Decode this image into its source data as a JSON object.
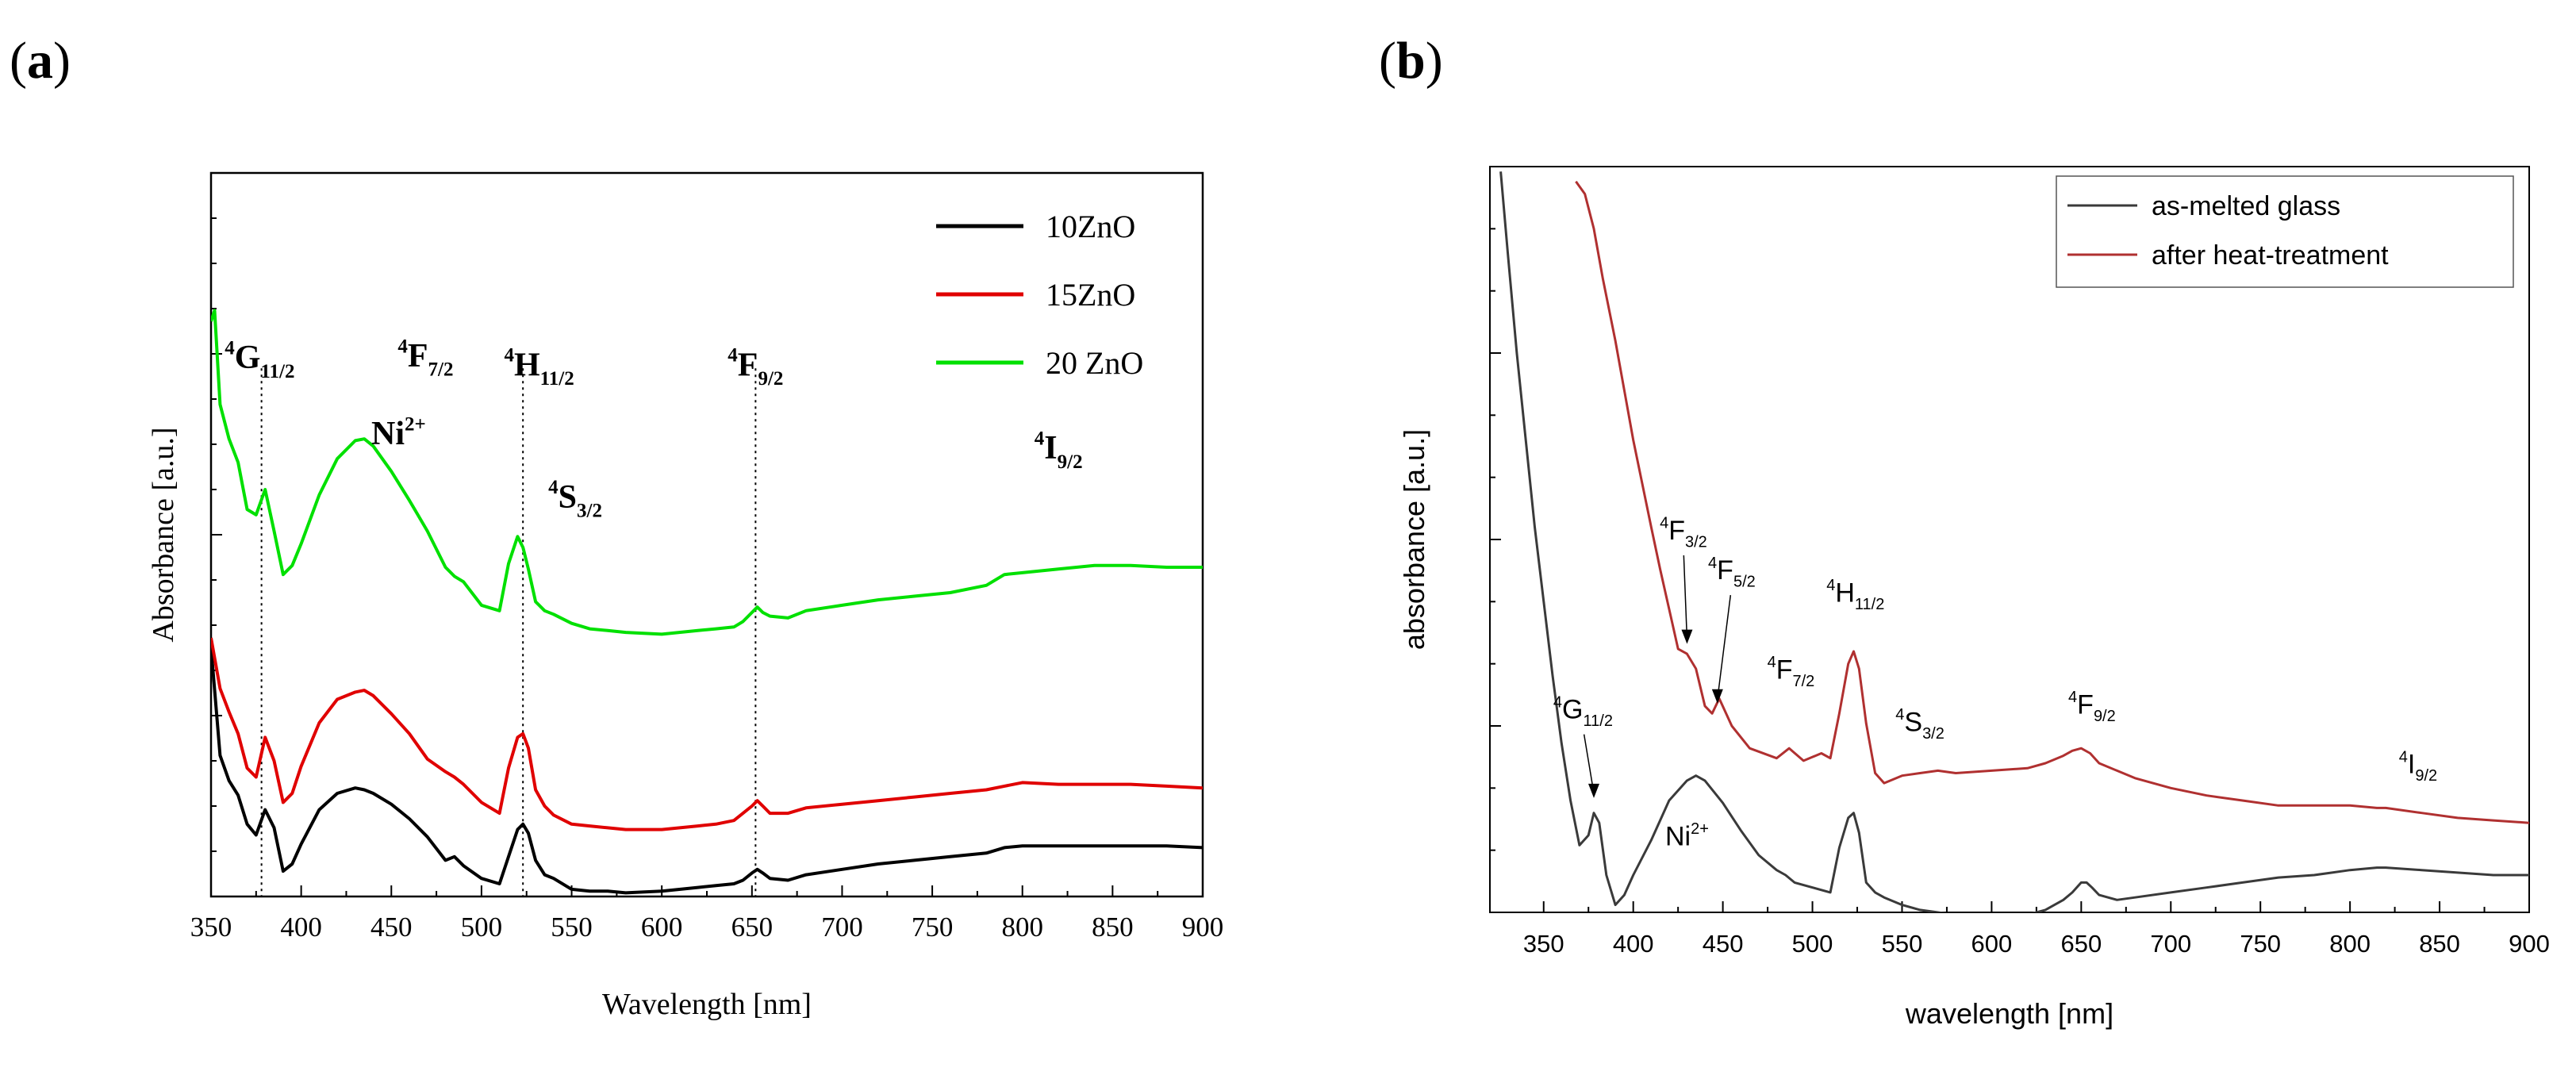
{
  "panels": {
    "a_label_open": "(",
    "a_label_letter": "a",
    "a_label_close": ")",
    "b_label_open": "(",
    "b_label_letter": "b",
    "b_label_close": ")"
  },
  "chart_data": [
    {
      "id": "a",
      "type": "line",
      "title": "",
      "xlabel": "Wavelength [nm]",
      "ylabel": "Absorbance [a.u.]",
      "xlim": [
        350,
        900
      ],
      "ylim": [
        0,
        4.0
      ],
      "xticks": [
        350,
        400,
        450,
        500,
        550,
        600,
        650,
        700,
        750,
        800,
        850,
        900
      ],
      "yticks_shown": false,
      "grid": false,
      "legend_position": "top-right",
      "series": [
        {
          "name": "10ZnO",
          "color": "#000000",
          "x": [
            350,
            355,
            360,
            365,
            370,
            375,
            380,
            385,
            390,
            395,
            400,
            410,
            420,
            430,
            435,
            440,
            450,
            460,
            470,
            480,
            485,
            490,
            500,
            510,
            515,
            520,
            523,
            526,
            530,
            535,
            540,
            550,
            560,
            570,
            580,
            600,
            620,
            630,
            640,
            645,
            650,
            653,
            656,
            660,
            670,
            680,
            700,
            720,
            740,
            760,
            780,
            790,
            800,
            820,
            840,
            860,
            880,
            900
          ],
          "y": [
            1.38,
            0.78,
            0.64,
            0.56,
            0.4,
            0.34,
            0.48,
            0.38,
            0.14,
            0.18,
            0.29,
            0.48,
            0.57,
            0.6,
            0.59,
            0.57,
            0.51,
            0.43,
            0.33,
            0.2,
            0.22,
            0.17,
            0.1,
            0.07,
            0.22,
            0.37,
            0.4,
            0.35,
            0.2,
            0.12,
            0.1,
            0.04,
            0.03,
            0.03,
            0.02,
            0.03,
            0.05,
            0.06,
            0.07,
            0.09,
            0.13,
            0.15,
            0.13,
            0.1,
            0.09,
            0.12,
            0.15,
            0.18,
            0.2,
            0.22,
            0.24,
            0.27,
            0.28,
            0.28,
            0.28,
            0.28,
            0.28,
            0.27
          ]
        },
        {
          "name": "15ZnO",
          "color": "#e00000",
          "x": [
            350,
            355,
            360,
            365,
            370,
            375,
            380,
            385,
            390,
            395,
            400,
            410,
            420,
            430,
            435,
            440,
            450,
            460,
            470,
            480,
            485,
            490,
            500,
            510,
            515,
            520,
            523,
            526,
            530,
            535,
            540,
            550,
            560,
            570,
            580,
            600,
            620,
            630,
            640,
            645,
            650,
            653,
            656,
            660,
            670,
            680,
            700,
            720,
            740,
            760,
            780,
            790,
            800,
            820,
            840,
            860,
            880,
            900
          ],
          "y": [
            1.43,
            1.15,
            1.02,
            0.9,
            0.71,
            0.66,
            0.88,
            0.75,
            0.52,
            0.57,
            0.72,
            0.96,
            1.09,
            1.13,
            1.14,
            1.11,
            1.01,
            0.9,
            0.76,
            0.69,
            0.66,
            0.62,
            0.52,
            0.46,
            0.71,
            0.88,
            0.9,
            0.82,
            0.59,
            0.5,
            0.45,
            0.4,
            0.39,
            0.38,
            0.37,
            0.37,
            0.39,
            0.4,
            0.42,
            0.46,
            0.5,
            0.53,
            0.5,
            0.46,
            0.46,
            0.49,
            0.51,
            0.53,
            0.55,
            0.57,
            0.59,
            0.61,
            0.63,
            0.62,
            0.62,
            0.62,
            0.61,
            0.6
          ]
        },
        {
          "name": "20 ZnO",
          "color": "#00e000",
          "x": [
            350,
            352,
            355,
            360,
            365,
            370,
            375,
            380,
            385,
            390,
            395,
            400,
            410,
            420,
            430,
            435,
            440,
            450,
            460,
            470,
            480,
            485,
            490,
            500,
            510,
            515,
            520,
            523,
            526,
            530,
            535,
            540,
            550,
            560,
            570,
            580,
            600,
            620,
            630,
            640,
            645,
            650,
            653,
            656,
            660,
            670,
            680,
            700,
            720,
            740,
            760,
            780,
            790,
            800,
            820,
            840,
            860,
            880,
            900
          ],
          "y": [
            3.18,
            3.24,
            2.72,
            2.53,
            2.4,
            2.14,
            2.11,
            2.25,
            2.02,
            1.78,
            1.83,
            1.95,
            2.22,
            2.42,
            2.52,
            2.53,
            2.49,
            2.35,
            2.19,
            2.02,
            1.82,
            1.77,
            1.74,
            1.61,
            1.58,
            1.84,
            1.99,
            1.93,
            1.81,
            1.63,
            1.58,
            1.56,
            1.51,
            1.48,
            1.47,
            1.46,
            1.45,
            1.47,
            1.48,
            1.49,
            1.52,
            1.57,
            1.6,
            1.57,
            1.55,
            1.54,
            1.58,
            1.61,
            1.64,
            1.66,
            1.68,
            1.72,
            1.78,
            1.79,
            1.81,
            1.83,
            1.83,
            1.82,
            1.82
          ]
        }
      ],
      "vlines": [
        378,
        523,
        652
      ],
      "annotations": [
        {
          "sup": "4",
          "main": "G",
          "sub": "11/2",
          "x": 377,
          "y": 2.92
        },
        {
          "sup": "4",
          "main": "F",
          "sub": "7/2",
          "x": 469,
          "y": 2.93
        },
        {
          "sup": "4",
          "main": "H",
          "sub": "11/2",
          "x": 532,
          "y": 2.88
        },
        {
          "sup": "4",
          "main": "F",
          "sub": "9/2",
          "x": 652,
          "y": 2.88
        },
        {
          "sup": "4",
          "main": "I",
          "sub": "9/2",
          "x": 820,
          "y": 2.42
        },
        {
          "sup": "4",
          "main": "S",
          "sub": "3/2",
          "x": 552,
          "y": 2.15
        },
        {
          "sup": "",
          "main": "Ni",
          "sup_after": "2+",
          "sub": "",
          "x": 454,
          "y": 2.5
        }
      ]
    },
    {
      "id": "b",
      "type": "line",
      "title": "",
      "xlabel": "wavelength [nm]",
      "ylabel": "absorbance [a.u.]",
      "xlim": [
        320,
        900
      ],
      "ylim": [
        0,
        3.0
      ],
      "xticks": [
        350,
        400,
        450,
        500,
        550,
        600,
        650,
        700,
        750,
        800,
        850,
        900
      ],
      "yticks_shown": false,
      "grid": false,
      "legend_position": "top-right",
      "series": [
        {
          "name": "as-melted glass",
          "color": "#3a3a3a",
          "x": [
            326,
            330,
            335,
            340,
            345,
            350,
            355,
            360,
            365,
            370,
            375,
            378,
            381,
            385,
            390,
            395,
            400,
            410,
            420,
            430,
            435,
            440,
            450,
            460,
            470,
            480,
            485,
            490,
            500,
            510,
            515,
            520,
            523,
            526,
            530,
            535,
            540,
            550,
            560,
            570,
            580,
            600,
            620,
            630,
            640,
            645,
            650,
            653,
            656,
            660,
            670,
            680,
            700,
            720,
            740,
            760,
            780,
            790,
            800,
            815,
            820,
            840,
            860,
            880,
            900
          ],
          "y": [
            2.98,
            2.65,
            2.25,
            1.9,
            1.55,
            1.25,
            0.95,
            0.68,
            0.45,
            0.27,
            0.31,
            0.4,
            0.36,
            0.15,
            0.03,
            0.07,
            0.15,
            0.29,
            0.45,
            0.53,
            0.55,
            0.53,
            0.44,
            0.33,
            0.23,
            0.17,
            0.15,
            0.12,
            0.1,
            0.08,
            0.26,
            0.38,
            0.4,
            0.32,
            0.12,
            0.08,
            0.06,
            0.03,
            0.01,
            0.0,
            -0.01,
            -0.02,
            -0.01,
            0.01,
            0.05,
            0.08,
            0.12,
            0.12,
            0.1,
            0.07,
            0.05,
            0.06,
            0.08,
            0.1,
            0.12,
            0.14,
            0.15,
            0.16,
            0.17,
            0.18,
            0.18,
            0.17,
            0.16,
            0.15,
            0.15
          ]
        },
        {
          "name": "after heat-treatment",
          "color": "#b03030",
          "x": [
            368,
            373,
            378,
            383,
            390,
            395,
            400,
            410,
            415,
            420,
            425,
            430,
            435,
            440,
            444,
            448,
            455,
            465,
            480,
            487,
            495,
            505,
            510,
            515,
            520,
            523,
            526,
            530,
            535,
            540,
            550,
            560,
            570,
            580,
            600,
            620,
            630,
            640,
            645,
            650,
            655,
            660,
            670,
            680,
            700,
            720,
            740,
            760,
            780,
            800,
            815,
            820,
            840,
            860,
            880,
            900
          ],
          "y": [
            2.94,
            2.89,
            2.75,
            2.55,
            2.3,
            2.1,
            1.9,
            1.55,
            1.38,
            1.22,
            1.06,
            1.04,
            0.98,
            0.83,
            0.8,
            0.86,
            0.75,
            0.66,
            0.62,
            0.66,
            0.61,
            0.64,
            0.62,
            0.8,
            1.0,
            1.05,
            0.98,
            0.76,
            0.56,
            0.52,
            0.55,
            0.56,
            0.57,
            0.56,
            0.57,
            0.58,
            0.6,
            0.63,
            0.65,
            0.66,
            0.64,
            0.6,
            0.57,
            0.54,
            0.5,
            0.47,
            0.45,
            0.43,
            0.43,
            0.43,
            0.42,
            0.42,
            0.4,
            0.38,
            0.37,
            0.36
          ]
        }
      ],
      "vlines": [],
      "annotations": [
        {
          "sup": "4",
          "main": "G",
          "sub": "11/2",
          "x": 372,
          "y": 0.78,
          "arrow_to": [
            378,
            0.46
          ]
        },
        {
          "sup": "4",
          "main": "F",
          "sub": "3/2",
          "x": 428,
          "y": 1.5,
          "arrow_to": [
            430,
            1.08
          ]
        },
        {
          "sup": "4",
          "main": "F",
          "sub": "5/2",
          "x": 455,
          "y": 1.34,
          "arrow_to": [
            447,
            0.84
          ]
        },
        {
          "sup": "4",
          "main": "H",
          "sub": "11/2",
          "x": 524,
          "y": 1.25
        },
        {
          "sup": "4",
          "main": "F",
          "sub": "7/2",
          "x": 488,
          "y": 0.94
        },
        {
          "sup": "4",
          "main": "S",
          "sub": "3/2",
          "x": 560,
          "y": 0.73
        },
        {
          "sup": "4",
          "main": "F",
          "sub": "9/2",
          "x": 656,
          "y": 0.8
        },
        {
          "sup": "4",
          "main": "I",
          "sub": "9/2",
          "x": 838,
          "y": 0.56
        },
        {
          "sup": "",
          "main": "Ni",
          "sup_after": "2+",
          "sub": "",
          "x": 430,
          "y": 0.27
        }
      ]
    }
  ]
}
